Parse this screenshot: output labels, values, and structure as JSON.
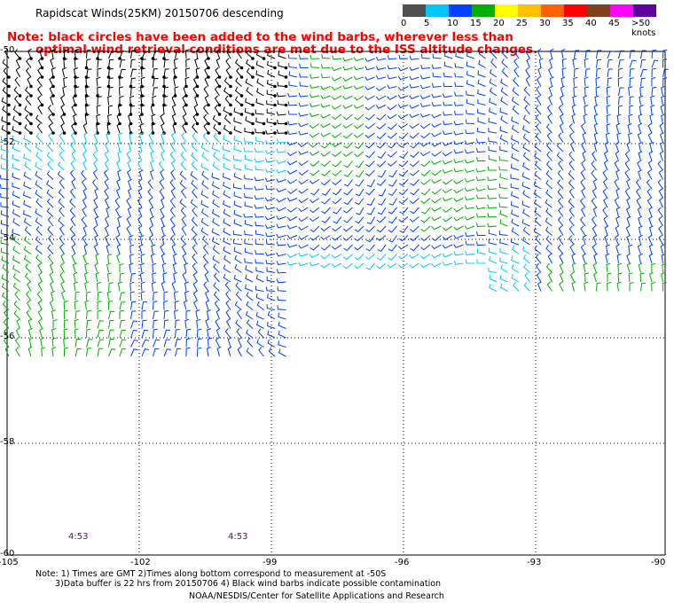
{
  "title": "Rapidscat Winds(25KM) 20150706 descending",
  "note": {
    "line1": "Note: black circles have been added to the wind barbs, wherever less than",
    "line2": "optimal wind retrieval conditions are met due to the ISS altitude changes."
  },
  "legend": {
    "labels": [
      "0",
      "5",
      "10",
      "15",
      "20",
      "25",
      "30",
      "35",
      "40",
      "45",
      ">50 knots"
    ],
    "colors": [
      "#505050",
      "#00c8ff",
      "#0040ff",
      "#00b000",
      "#ffff00",
      "#ffc000",
      "#ff6000",
      "#ff0000",
      "#804020",
      "#ff00ff",
      "#6000a0"
    ]
  },
  "lat_labels": [
    "-50",
    "-52",
    "-54",
    "-56",
    "-58",
    "-60"
  ],
  "lon_labels": [
    "-105",
    "-102",
    "-99",
    "-96",
    "-93",
    "-90"
  ],
  "times": [
    "4:53",
    "4:53"
  ],
  "footer": {
    "line1": "Note: 1) Times are GMT 2)Times along bottom correspond to measurement at -50S",
    "line2": "3)Data buffer is 22 hrs from 20150706 4) Black wind barbs indicate possible contamination",
    "line3": "NOAA/NESDIS/Center for Satellite Applications and Research"
  },
  "barb_colors": {
    "contaminated": "#000000",
    "light": "#00c8ff",
    "medium": "#0040ff",
    "strong": "#00b000"
  }
}
